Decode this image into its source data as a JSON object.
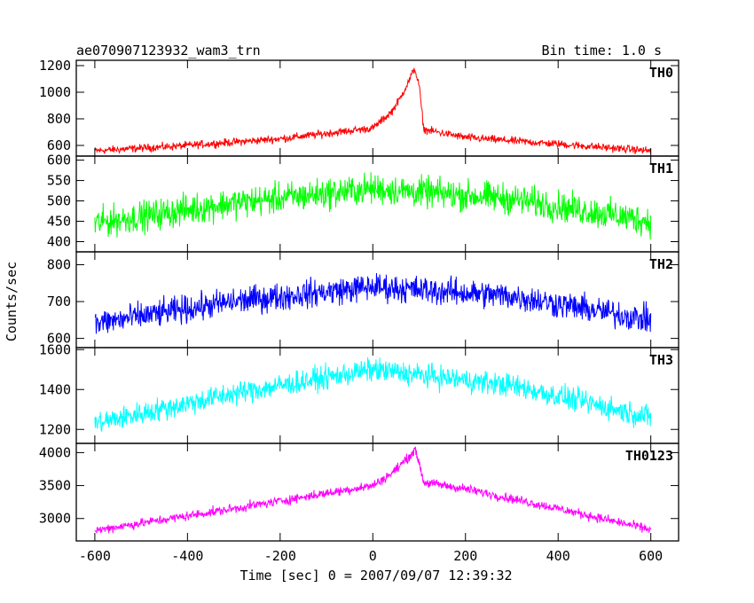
{
  "title_left": "ae070907123932_wam3_trn",
  "title_right": "Bin time: 1.0 s",
  "ylabel": "Counts/sec",
  "xlabel": "Time [sec] 0 = 2007/09/07 12:39:32",
  "chart_data": {
    "type": "line",
    "title": "ae070907123932_wam3_trn",
    "subtitle": "Bin time: 1.0 s",
    "xlabel": "Time [sec] 0 = 2007/09/07 12:39:32",
    "ylabel": "Counts/sec",
    "xlim": [
      -640,
      660
    ],
    "x_range": [
      -600,
      600
    ],
    "bin_time_s": 1.0,
    "x_ticks": [
      -600,
      -400,
      -200,
      0,
      200,
      400,
      600
    ],
    "panels": [
      {
        "name": "TH0",
        "color": "#ff0000",
        "ylim": [
          520,
          1240
        ],
        "y_ticks": [
          600,
          800,
          1000,
          1200
        ],
        "profile_x": [
          -600,
          -400,
          -200,
          0,
          40,
          60,
          80,
          90,
          100,
          110,
          200,
          400,
          600
        ],
        "profile_y": [
          560,
          600,
          650,
          730,
          850,
          960,
          1100,
          1180,
          1050,
          720,
          660,
          610,
          560
        ],
        "noise": 25
      },
      {
        "name": "TH1",
        "color": "#00ff00",
        "ylim": [
          375,
          610
        ],
        "y_ticks": [
          400,
          450,
          500,
          550,
          600
        ],
        "profile_x": [
          -600,
          -300,
          0,
          300,
          600
        ],
        "profile_y": [
          445,
          495,
          530,
          505,
          450
        ],
        "noise": 32
      },
      {
        "name": "TH2",
        "color": "#0000ff",
        "ylim": [
          575,
          835
        ],
        "y_ticks": [
          600,
          700,
          800
        ],
        "profile_x": [
          -600,
          -300,
          0,
          300,
          600
        ],
        "profile_y": [
          640,
          700,
          740,
          715,
          650
        ],
        "noise": 32
      },
      {
        "name": "TH3",
        "color": "#00ffff",
        "ylim": [
          1130,
          1610
        ],
        "y_ticks": [
          1200,
          1400,
          1600
        ],
        "profile_x": [
          -600,
          -300,
          0,
          300,
          600
        ],
        "profile_y": [
          1230,
          1380,
          1500,
          1420,
          1260
        ],
        "noise": 50
      },
      {
        "name": "TH0123",
        "color": "#ff00ff",
        "ylim": [
          2660,
          4140
        ],
        "y_ticks": [
          3000,
          3500,
          4000
        ],
        "profile_x": [
          -600,
          -300,
          0,
          40,
          80,
          90,
          100,
          110,
          200,
          400,
          600
        ],
        "profile_y": [
          2820,
          3150,
          3500,
          3680,
          3950,
          4050,
          3850,
          3550,
          3450,
          3150,
          2830
        ],
        "noise": 60
      }
    ]
  }
}
